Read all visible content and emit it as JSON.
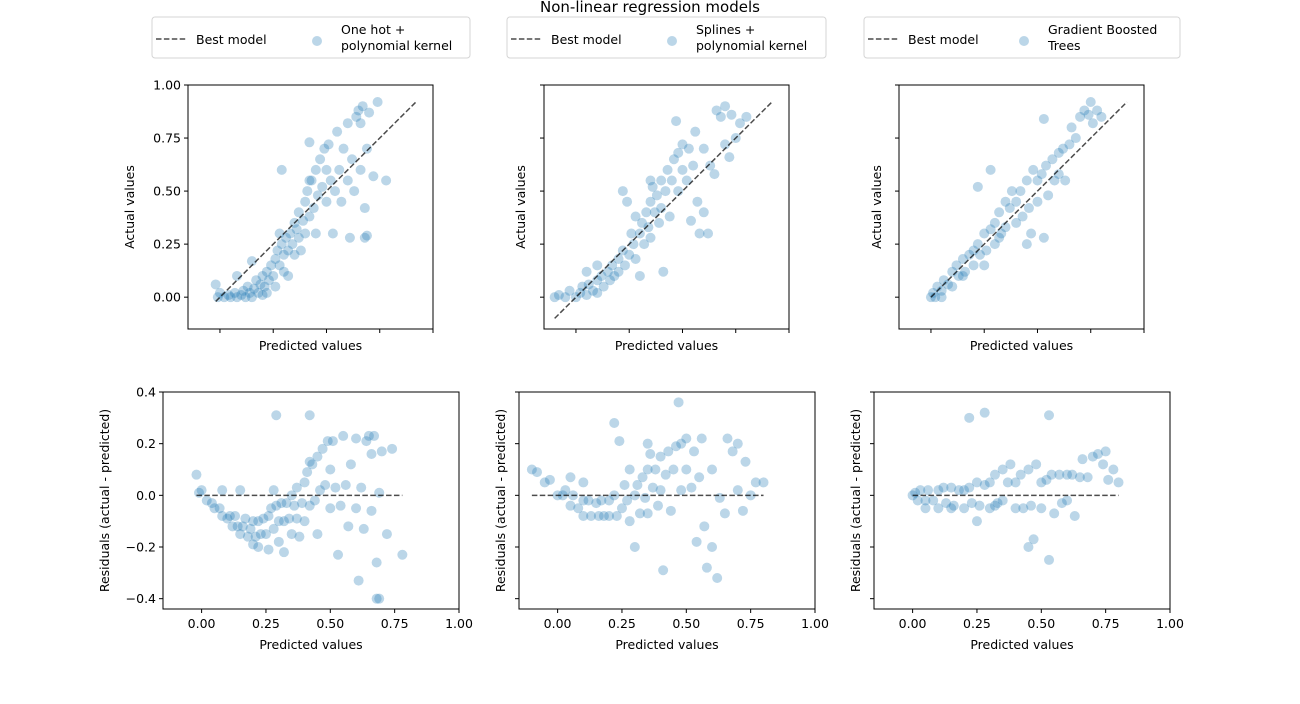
{
  "chart_data": {
    "type": "scatter",
    "title": "Non-linear regression models",
    "marker_color": "#1f77b4",
    "marker_alpha": 0.3,
    "reference_line_color": "#000000",
    "reference_line_label": "Best model",
    "grid": false,
    "legend_placement": "top, above each column",
    "top_row": {
      "xlabel": "Predicted values",
      "ylabel": "Actual values",
      "xlim": [
        -0.15,
        1.0
      ],
      "ylim": [
        -0.15,
        1.0
      ],
      "yticks": [
        0.0,
        0.25,
        0.5,
        0.75,
        1.0
      ],
      "ytick_labels": [
        "0.00",
        "0.25",
        "0.50",
        "0.75",
        "1.00"
      ],
      "xticks": [
        0.0,
        0.25,
        0.5,
        0.75,
        1.0
      ]
    },
    "bottom_row": {
      "xlabel": "Predicted values",
      "ylabel": "Residuals (actual - predicted)",
      "xlim": [
        -0.15,
        1.0
      ],
      "ylim": [
        -0.44,
        0.4
      ],
      "xticks": [
        0.0,
        0.25,
        0.5,
        0.75,
        1.0
      ],
      "xtick_labels": [
        "0.00",
        "0.25",
        "0.50",
        "0.75",
        "1.00"
      ],
      "yticks": [
        -0.4,
        -0.2,
        0.0,
        0.2,
        0.4
      ],
      "ytick_labels": [
        "−0.4",
        "−0.2",
        "0.0",
        "0.2",
        "0.4"
      ]
    },
    "models": [
      {
        "name": "One hot +\npolynomial kernel",
        "name_lines": [
          "One hot +",
          "polynomial kernel"
        ],
        "best_line_range": [
          -0.02,
          0.92
        ],
        "points_predicted_actual": [
          [
            -0.01,
            0.0
          ],
          [
            0.0,
            0.02
          ],
          [
            -0.02,
            0.06
          ],
          [
            0.02,
            0.0
          ],
          [
            0.04,
            0.01
          ],
          [
            0.05,
            0.0
          ],
          [
            0.07,
            0.02
          ],
          [
            0.08,
            0.0
          ],
          [
            0.1,
            0.01
          ],
          [
            0.11,
            0.03
          ],
          [
            0.12,
            0.0
          ],
          [
            0.13,
            0.05
          ],
          [
            0.14,
            0.02
          ],
          [
            0.15,
            0.0
          ],
          [
            0.16,
            0.04
          ],
          [
            0.17,
            0.08
          ],
          [
            0.18,
            0.02
          ],
          [
            0.19,
            0.06
          ],
          [
            0.2,
            0.1
          ],
          [
            0.2,
            0.01
          ],
          [
            0.21,
            0.05
          ],
          [
            0.22,
            0.12
          ],
          [
            0.23,
            0.08
          ],
          [
            0.24,
            0.15
          ],
          [
            0.25,
            0.1
          ],
          [
            0.26,
            0.18
          ],
          [
            0.26,
            0.05
          ],
          [
            0.27,
            0.22
          ],
          [
            0.28,
            0.15
          ],
          [
            0.29,
            0.25
          ],
          [
            0.3,
            0.2
          ],
          [
            0.3,
            0.12
          ],
          [
            0.31,
            0.28
          ],
          [
            0.32,
            0.22
          ],
          [
            0.32,
            0.1
          ],
          [
            0.33,
            0.3
          ],
          [
            0.34,
            0.25
          ],
          [
            0.35,
            0.35
          ],
          [
            0.35,
            0.2
          ],
          [
            0.36,
            0.32
          ],
          [
            0.37,
            0.4
          ],
          [
            0.37,
            0.28
          ],
          [
            0.38,
            0.22
          ],
          [
            0.39,
            0.36
          ],
          [
            0.4,
            0.45
          ],
          [
            0.4,
            0.3
          ],
          [
            0.41,
            0.5
          ],
          [
            0.42,
            0.38
          ],
          [
            0.43,
            0.55
          ],
          [
            0.44,
            0.42
          ],
          [
            0.45,
            0.6
          ],
          [
            0.45,
            0.3
          ],
          [
            0.46,
            0.48
          ],
          [
            0.47,
            0.65
          ],
          [
            0.48,
            0.52
          ],
          [
            0.49,
            0.7
          ],
          [
            0.5,
            0.45
          ],
          [
            0.5,
            0.6
          ],
          [
            0.51,
            0.72
          ],
          [
            0.52,
            0.55
          ],
          [
            0.53,
            0.3
          ],
          [
            0.54,
            0.5
          ],
          [
            0.55,
            0.78
          ],
          [
            0.56,
            0.6
          ],
          [
            0.57,
            0.45
          ],
          [
            0.58,
            0.7
          ],
          [
            0.6,
            0.82
          ],
          [
            0.6,
            0.55
          ],
          [
            0.61,
            0.28
          ],
          [
            0.62,
            0.65
          ],
          [
            0.63,
            0.5
          ],
          [
            0.64,
            0.85
          ],
          [
            0.65,
            0.88
          ],
          [
            0.66,
            0.82
          ],
          [
            0.66,
            0.6
          ],
          [
            0.67,
            0.9
          ],
          [
            0.68,
            0.42
          ],
          [
            0.68,
            0.28
          ],
          [
            0.69,
            0.7
          ],
          [
            0.69,
            0.29
          ],
          [
            0.7,
            0.87
          ],
          [
            0.72,
            0.57
          ],
          [
            0.74,
            0.92
          ],
          [
            0.78,
            0.55
          ],
          [
            0.15,
            0.17
          ],
          [
            0.08,
            0.1
          ],
          [
            0.22,
            0.02
          ],
          [
            0.28,
            0.3
          ],
          [
            0.42,
            0.55
          ],
          [
            0.29,
            0.6
          ],
          [
            0.42,
            0.73
          ]
        ]
      },
      {
        "name": "Splines +\npolynomial kernel",
        "name_lines": [
          "Splines +",
          "polynomial kernel"
        ],
        "best_line_range": [
          -0.1,
          0.92
        ],
        "points_predicted_actual": [
          [
            -0.1,
            0.0
          ],
          [
            -0.08,
            0.01
          ],
          [
            -0.05,
            0.0
          ],
          [
            -0.03,
            0.03
          ],
          [
            0.0,
            0.0
          ],
          [
            0.02,
            0.02
          ],
          [
            0.03,
            0.05
          ],
          [
            0.05,
            0.01
          ],
          [
            0.06,
            0.06
          ],
          [
            0.08,
            0.03
          ],
          [
            0.1,
            0.08
          ],
          [
            0.1,
            0.02
          ],
          [
            0.12,
            0.1
          ],
          [
            0.13,
            0.05
          ],
          [
            0.15,
            0.12
          ],
          [
            0.16,
            0.08
          ],
          [
            0.17,
            0.15
          ],
          [
            0.18,
            0.1
          ],
          [
            0.2,
            0.18
          ],
          [
            0.2,
            0.12
          ],
          [
            0.22,
            0.22
          ],
          [
            0.23,
            0.15
          ],
          [
            0.24,
            0.45
          ],
          [
            0.25,
            0.2
          ],
          [
            0.26,
            0.3
          ],
          [
            0.27,
            0.25
          ],
          [
            0.28,
            0.38
          ],
          [
            0.28,
            0.18
          ],
          [
            0.3,
            0.3
          ],
          [
            0.31,
            0.35
          ],
          [
            0.32,
            0.25
          ],
          [
            0.33,
            0.4
          ],
          [
            0.34,
            0.33
          ],
          [
            0.35,
            0.45
          ],
          [
            0.35,
            0.28
          ],
          [
            0.36,
            0.52
          ],
          [
            0.37,
            0.4
          ],
          [
            0.38,
            0.48
          ],
          [
            0.39,
            0.35
          ],
          [
            0.4,
            0.55
          ],
          [
            0.4,
            0.42
          ],
          [
            0.42,
            0.5
          ],
          [
            0.43,
            0.6
          ],
          [
            0.44,
            0.38
          ],
          [
            0.45,
            0.55
          ],
          [
            0.46,
            0.65
          ],
          [
            0.47,
            0.83
          ],
          [
            0.48,
            0.5
          ],
          [
            0.48,
            0.68
          ],
          [
            0.5,
            0.6
          ],
          [
            0.5,
            0.72
          ],
          [
            0.52,
            0.55
          ],
          [
            0.53,
            0.7
          ],
          [
            0.54,
            0.36
          ],
          [
            0.55,
            0.62
          ],
          [
            0.56,
            0.78
          ],
          [
            0.57,
            0.45
          ],
          [
            0.58,
            0.3
          ],
          [
            0.6,
            0.7
          ],
          [
            0.6,
            0.4
          ],
          [
            0.62,
            0.3
          ],
          [
            0.63,
            0.62
          ],
          [
            0.65,
            0.58
          ],
          [
            0.66,
            0.88
          ],
          [
            0.68,
            0.85
          ],
          [
            0.7,
            0.9
          ],
          [
            0.7,
            0.72
          ],
          [
            0.72,
            0.66
          ],
          [
            0.73,
            0.86
          ],
          [
            0.75,
            0.75
          ],
          [
            0.77,
            0.82
          ],
          [
            0.8,
            0.85
          ],
          [
            0.22,
            0.5
          ],
          [
            0.3,
            0.1
          ],
          [
            0.41,
            0.12
          ],
          [
            0.1,
            0.15
          ],
          [
            0.05,
            0.12
          ],
          [
            0.35,
            0.55
          ]
        ]
      },
      {
        "name": "Gradient Boosted\nTrees",
        "name_lines": [
          "Gradient Boosted",
          "Trees"
        ],
        "best_line_range": [
          0.0,
          0.92
        ],
        "points_predicted_actual": [
          [
            0.0,
            0.0
          ],
          [
            0.01,
            0.02
          ],
          [
            0.02,
            0.0
          ],
          [
            0.03,
            0.05
          ],
          [
            0.05,
            0.03
          ],
          [
            0.06,
            0.08
          ],
          [
            0.08,
            0.06
          ],
          [
            0.1,
            0.12
          ],
          [
            0.1,
            0.05
          ],
          [
            0.12,
            0.15
          ],
          [
            0.13,
            0.1
          ],
          [
            0.15,
            0.18
          ],
          [
            0.16,
            0.12
          ],
          [
            0.18,
            0.2
          ],
          [
            0.2,
            0.22
          ],
          [
            0.2,
            0.15
          ],
          [
            0.22,
            0.25
          ],
          [
            0.22,
            0.52
          ],
          [
            0.23,
            0.2
          ],
          [
            0.25,
            0.3
          ],
          [
            0.26,
            0.22
          ],
          [
            0.28,
            0.32
          ],
          [
            0.28,
            0.6
          ],
          [
            0.3,
            0.35
          ],
          [
            0.3,
            0.25
          ],
          [
            0.32,
            0.4
          ],
          [
            0.33,
            0.3
          ],
          [
            0.35,
            0.45
          ],
          [
            0.35,
            0.33
          ],
          [
            0.37,
            0.42
          ],
          [
            0.38,
            0.5
          ],
          [
            0.4,
            0.45
          ],
          [
            0.4,
            0.35
          ],
          [
            0.42,
            0.5
          ],
          [
            0.43,
            0.38
          ],
          [
            0.45,
            0.55
          ],
          [
            0.46,
            0.42
          ],
          [
            0.47,
            0.3
          ],
          [
            0.48,
            0.6
          ],
          [
            0.5,
            0.55
          ],
          [
            0.5,
            0.45
          ],
          [
            0.52,
            0.58
          ],
          [
            0.53,
            0.28
          ],
          [
            0.53,
            0.84
          ],
          [
            0.54,
            0.62
          ],
          [
            0.55,
            0.48
          ],
          [
            0.57,
            0.65
          ],
          [
            0.58,
            0.55
          ],
          [
            0.6,
            0.68
          ],
          [
            0.6,
            0.58
          ],
          [
            0.62,
            0.7
          ],
          [
            0.63,
            0.55
          ],
          [
            0.65,
            0.72
          ],
          [
            0.66,
            0.8
          ],
          [
            0.68,
            0.75
          ],
          [
            0.7,
            0.85
          ],
          [
            0.72,
            0.88
          ],
          [
            0.74,
            0.86
          ],
          [
            0.75,
            0.92
          ],
          [
            0.76,
            0.82
          ],
          [
            0.78,
            0.88
          ],
          [
            0.8,
            0.85
          ],
          [
            0.05,
            0.0
          ],
          [
            0.15,
            0.1
          ],
          [
            0.45,
            0.25
          ],
          [
            0.25,
            0.15
          ],
          [
            0.32,
            0.28
          ]
        ]
      }
    ]
  }
}
